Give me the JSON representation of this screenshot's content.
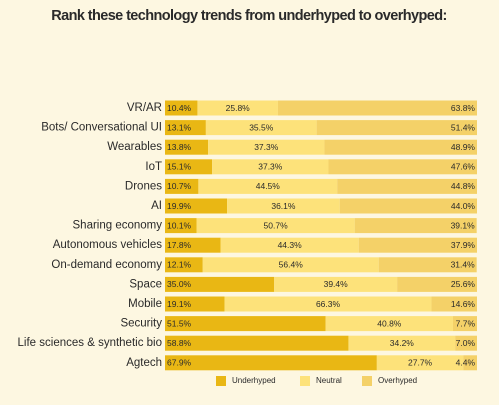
{
  "chart_data": {
    "type": "stacked-bar-horizontal",
    "title": "Rank these technology trends from underhyped to overhyped:",
    "categories": [
      "VR/AR",
      "Bots/ Conversational UI",
      "Wearables",
      "IoT",
      "Drones",
      "AI",
      "Sharing economy",
      "Autonomous vehicles",
      "On-demand economy",
      "Space",
      "Mobile",
      "Security",
      "Life sciences & synthetic bio",
      "Agtech"
    ],
    "xlim": [
      0,
      100
    ],
    "series": [
      {
        "name": "Underhyped",
        "color": "#e9b714",
        "values": [
          10.4,
          13.1,
          13.8,
          15.1,
          10.7,
          19.9,
          10.1,
          17.8,
          12.1,
          35.0,
          19.1,
          51.5,
          58.8,
          67.9
        ],
        "value_labels": [
          "10.4%",
          "13.1%",
          "13.8%",
          "15.1%",
          "10.7%",
          "19.9%",
          "10.1%",
          "17.8%",
          "12.1%",
          "35.0%",
          "19.1%",
          "51.5%",
          "58.8%",
          "67.9%"
        ]
      },
      {
        "name": "Neutral",
        "color": "#fde27a",
        "values": [
          25.8,
          35.5,
          37.3,
          37.3,
          44.5,
          36.1,
          50.7,
          44.3,
          56.4,
          39.4,
          66.3,
          40.8,
          34.2,
          27.7
        ],
        "value_labels": [
          "25.8%",
          "35.5%",
          "37.3%",
          "37.3%",
          "44.5%",
          "36.1%",
          "50.7%",
          "44.3%",
          "56.4%",
          "39.4%",
          "66.3%",
          "40.8%",
          "34.2%",
          "27.7%"
        ]
      },
      {
        "name": "Overhyped",
        "color": "#f4d168",
        "values": [
          63.8,
          51.4,
          48.9,
          47.6,
          44.8,
          44.0,
          39.1,
          37.9,
          31.4,
          25.6,
          14.6,
          7.7,
          7.0,
          4.4
        ],
        "value_labels": [
          "63.8%",
          "51.4%",
          "48.9%",
          "47.6%",
          "44.8%",
          "44.0%",
          "39.1%",
          "37.9%",
          "31.4%",
          "25.6%",
          "14.6%",
          "7.7%",
          "7.0%",
          "4.4%"
        ]
      }
    ]
  }
}
